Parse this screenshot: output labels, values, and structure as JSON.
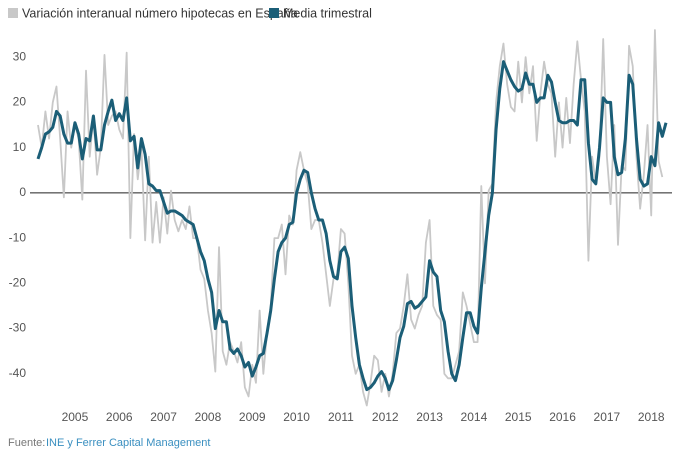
{
  "chart_data": {
    "type": "line",
    "categories": [
      null,
      null,
      null,
      null,
      null,
      null,
      null,
      null,
      null,
      null,
      "2005",
      null,
      null,
      null,
      null,
      null,
      null,
      null,
      null,
      null,
      null,
      null,
      "2006",
      null,
      null,
      null,
      null,
      null,
      null,
      null,
      null,
      null,
      null,
      null,
      "2007",
      null,
      null,
      null,
      null,
      null,
      null,
      null,
      null,
      null,
      null,
      null,
      "2008",
      null,
      null,
      null,
      null,
      null,
      null,
      null,
      null,
      null,
      null,
      null,
      "2009",
      null,
      null,
      null,
      null,
      null,
      null,
      null,
      null,
      null,
      null,
      null,
      "2010",
      null,
      null,
      null,
      null,
      null,
      null,
      null,
      null,
      null,
      null,
      null,
      "2011",
      null,
      null,
      null,
      null,
      null,
      null,
      null,
      null,
      null,
      null,
      null,
      "2012",
      null,
      null,
      null,
      null,
      null,
      null,
      null,
      null,
      null,
      null,
      null,
      "2013",
      null,
      null,
      null,
      null,
      null,
      null,
      null,
      null,
      null,
      null,
      null,
      "2014",
      null,
      null,
      null,
      null,
      null,
      null,
      null,
      null,
      null,
      null,
      null,
      "2015",
      null,
      null,
      null,
      null,
      null,
      null,
      null,
      null,
      null,
      null,
      null,
      "2016",
      null,
      null,
      null,
      null,
      null,
      null,
      null,
      null,
      null,
      null,
      null,
      "2017",
      null,
      null,
      null,
      null,
      null,
      null,
      null,
      null,
      null,
      null,
      null,
      "2018",
      null,
      null,
      null,
      null
    ],
    "series": [
      {
        "name": "Variación interanual número hipotecas en España",
        "color": "#c8c8c8",
        "values": [
          15,
          10,
          18,
          12,
          20,
          23.5,
          12,
          -1,
          18,
          10,
          15,
          12,
          -1.5,
          27,
          8,
          17,
          4,
          10,
          30.5,
          15,
          17,
          18,
          14,
          12,
          31,
          -10,
          13,
          3,
          10,
          -10.5,
          8,
          -11,
          -2,
          -11,
          -1,
          -9,
          0.5,
          -6,
          -8.5,
          -6,
          -8,
          -3,
          -10,
          -10,
          -17,
          -19,
          -26,
          -31,
          -39.5,
          -12,
          -35,
          -38,
          -33,
          -35,
          -37.5,
          -33,
          -43,
          -45,
          -38,
          -42,
          -26,
          -40,
          -31,
          -25,
          -10,
          -10,
          -7,
          -18,
          -5,
          -7,
          5,
          9,
          5,
          2,
          -8,
          -6,
          -6,
          -11,
          -18,
          -25,
          -19,
          -18,
          -8,
          -9,
          -20,
          -36,
          -40,
          -38,
          -44,
          -47,
          -42,
          -36,
          -37,
          -44,
          -40,
          -45,
          -40,
          -31,
          -30,
          -25,
          -18,
          -28,
          -30,
          -27,
          -25,
          -11,
          -6,
          -25,
          -27,
          -28,
          -40,
          -41,
          -41,
          -38,
          -35,
          -22,
          -25,
          -29,
          -33,
          -33,
          1.5,
          -20,
          0.5,
          2,
          20,
          28,
          33,
          24,
          19,
          18,
          29,
          20,
          30,
          22,
          28,
          11.5,
          22,
          29,
          24,
          22,
          8,
          20,
          10,
          21,
          11,
          24,
          33.5,
          25,
          18,
          -15,
          8,
          2,
          8,
          34,
          8,
          -2.5,
          15,
          -11.5,
          6,
          5,
          32.5,
          28,
          8,
          -3.5,
          4,
          15,
          -5,
          36,
          7,
          3.5,
          null
        ]
      },
      {
        "name": "Media trimestral",
        "color": "#1b5e77",
        "values": [
          7.5,
          10,
          13,
          13.5,
          14.5,
          18,
          17,
          13,
          11,
          11,
          15.5,
          13,
          7.5,
          12,
          11.5,
          17,
          9.5,
          9.5,
          15,
          18,
          20.5,
          16,
          17.5,
          16,
          21,
          11.5,
          12.5,
          5.5,
          12,
          8.5,
          2,
          1.5,
          0.5,
          0.5,
          -2,
          -4.5,
          -4,
          -4,
          -4.5,
          -5,
          -6,
          -6.5,
          -7,
          -10,
          -13,
          -15,
          -19,
          -22,
          -30,
          -26,
          -28.5,
          -28.5,
          -34.5,
          -35.5,
          -34.5,
          -36,
          -38.5,
          -37.5,
          -40.5,
          -38.5,
          -36,
          -35.5,
          -31,
          -26,
          -19,
          -13,
          -11,
          -10,
          -7,
          -6.5,
          0,
          3,
          5,
          4.5,
          0,
          -3.5,
          -6,
          -6,
          -9,
          -15,
          -18.5,
          -19,
          -13,
          -12,
          -14.5,
          -25,
          -32,
          -38,
          -41,
          -43.5,
          -43,
          -42,
          -40.5,
          -39.5,
          -41,
          -43.5,
          -41.5,
          -37,
          -32,
          -29.5,
          -24.5,
          -24,
          -25.5,
          -25,
          -24,
          -23,
          -15,
          -17.5,
          -18.5,
          -26,
          -28.5,
          -35,
          -40,
          -41.5,
          -38,
          -32,
          -26.5,
          -26.5,
          -29.5,
          -31,
          -21,
          -13,
          -5,
          0,
          14,
          23,
          29,
          27,
          25,
          23.5,
          22.5,
          23,
          26.5,
          24,
          24,
          20,
          21,
          21,
          26,
          24.5,
          20,
          16,
          15.5,
          15.5,
          16,
          16,
          15,
          25,
          25,
          11,
          3,
          2,
          10,
          21,
          20,
          20,
          8,
          4,
          4.5,
          12,
          26,
          24,
          12,
          3,
          1.5,
          2,
          8,
          6,
          15.5,
          12.5,
          15.5
        ]
      }
    ],
    "ylim": [
      -48,
      36
    ],
    "yticks": [
      30,
      20,
      10,
      0,
      -10,
      -20,
      -30,
      -40
    ],
    "grid": false,
    "source_label": "Fuente:",
    "source": "INE y Ferrer Capital Management"
  }
}
